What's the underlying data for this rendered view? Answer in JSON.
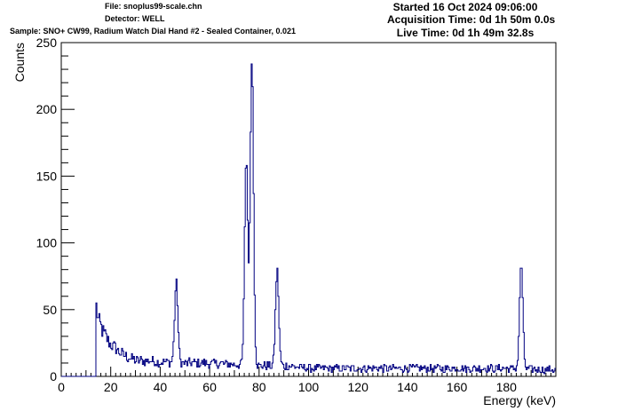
{
  "header": {
    "file": "File: snoplus99-scale.chn",
    "detector": "Detector: WELL",
    "sample": "Sample: SNO+ CW99, Radium Watch Dial Hand #2 - Sealed Container, 0.021",
    "started": "Started 16 Oct 2024 09:06:00",
    "acquisition_time": "Acquisition Time: 0d 1h 50m 0.0s",
    "live_time": "Live Time: 0d 1h 49m 32.8s"
  },
  "chart_data": {
    "type": "histogram",
    "title": "",
    "xlabel": "Energy (keV)",
    "ylabel": "Counts",
    "xlim": [
      0,
      200
    ],
    "ylim": [
      0,
      250
    ],
    "xticks": [
      0,
      20,
      40,
      60,
      80,
      100,
      120,
      140,
      160,
      180
    ],
    "yticks": [
      0,
      50,
      100,
      150,
      200,
      250
    ],
    "grid": false,
    "legend": "none",
    "line_color": "#000080",
    "approximate_baseline_counts": [
      [
        14,
        55
      ],
      [
        15,
        42
      ],
      [
        17,
        33
      ],
      [
        20,
        24
      ],
      [
        25,
        16
      ],
      [
        30,
        12
      ],
      [
        40,
        11
      ],
      [
        50,
        10
      ],
      [
        60,
        10
      ],
      [
        70,
        9
      ],
      [
        80,
        8
      ],
      [
        90,
        8
      ],
      [
        100,
        6
      ],
      [
        120,
        6
      ],
      [
        140,
        6
      ],
      [
        160,
        6
      ],
      [
        180,
        6
      ],
      [
        198,
        5
      ]
    ],
    "peaks": [
      {
        "energy_keV": 46.5,
        "counts": 70
      },
      {
        "energy_keV": 74.8,
        "counts": 164
      },
      {
        "energy_keV": 77.1,
        "counts": 240
      },
      {
        "energy_keV": 87.3,
        "counts": 80
      },
      {
        "energy_keV": 186.0,
        "counts": 85
      }
    ]
  }
}
